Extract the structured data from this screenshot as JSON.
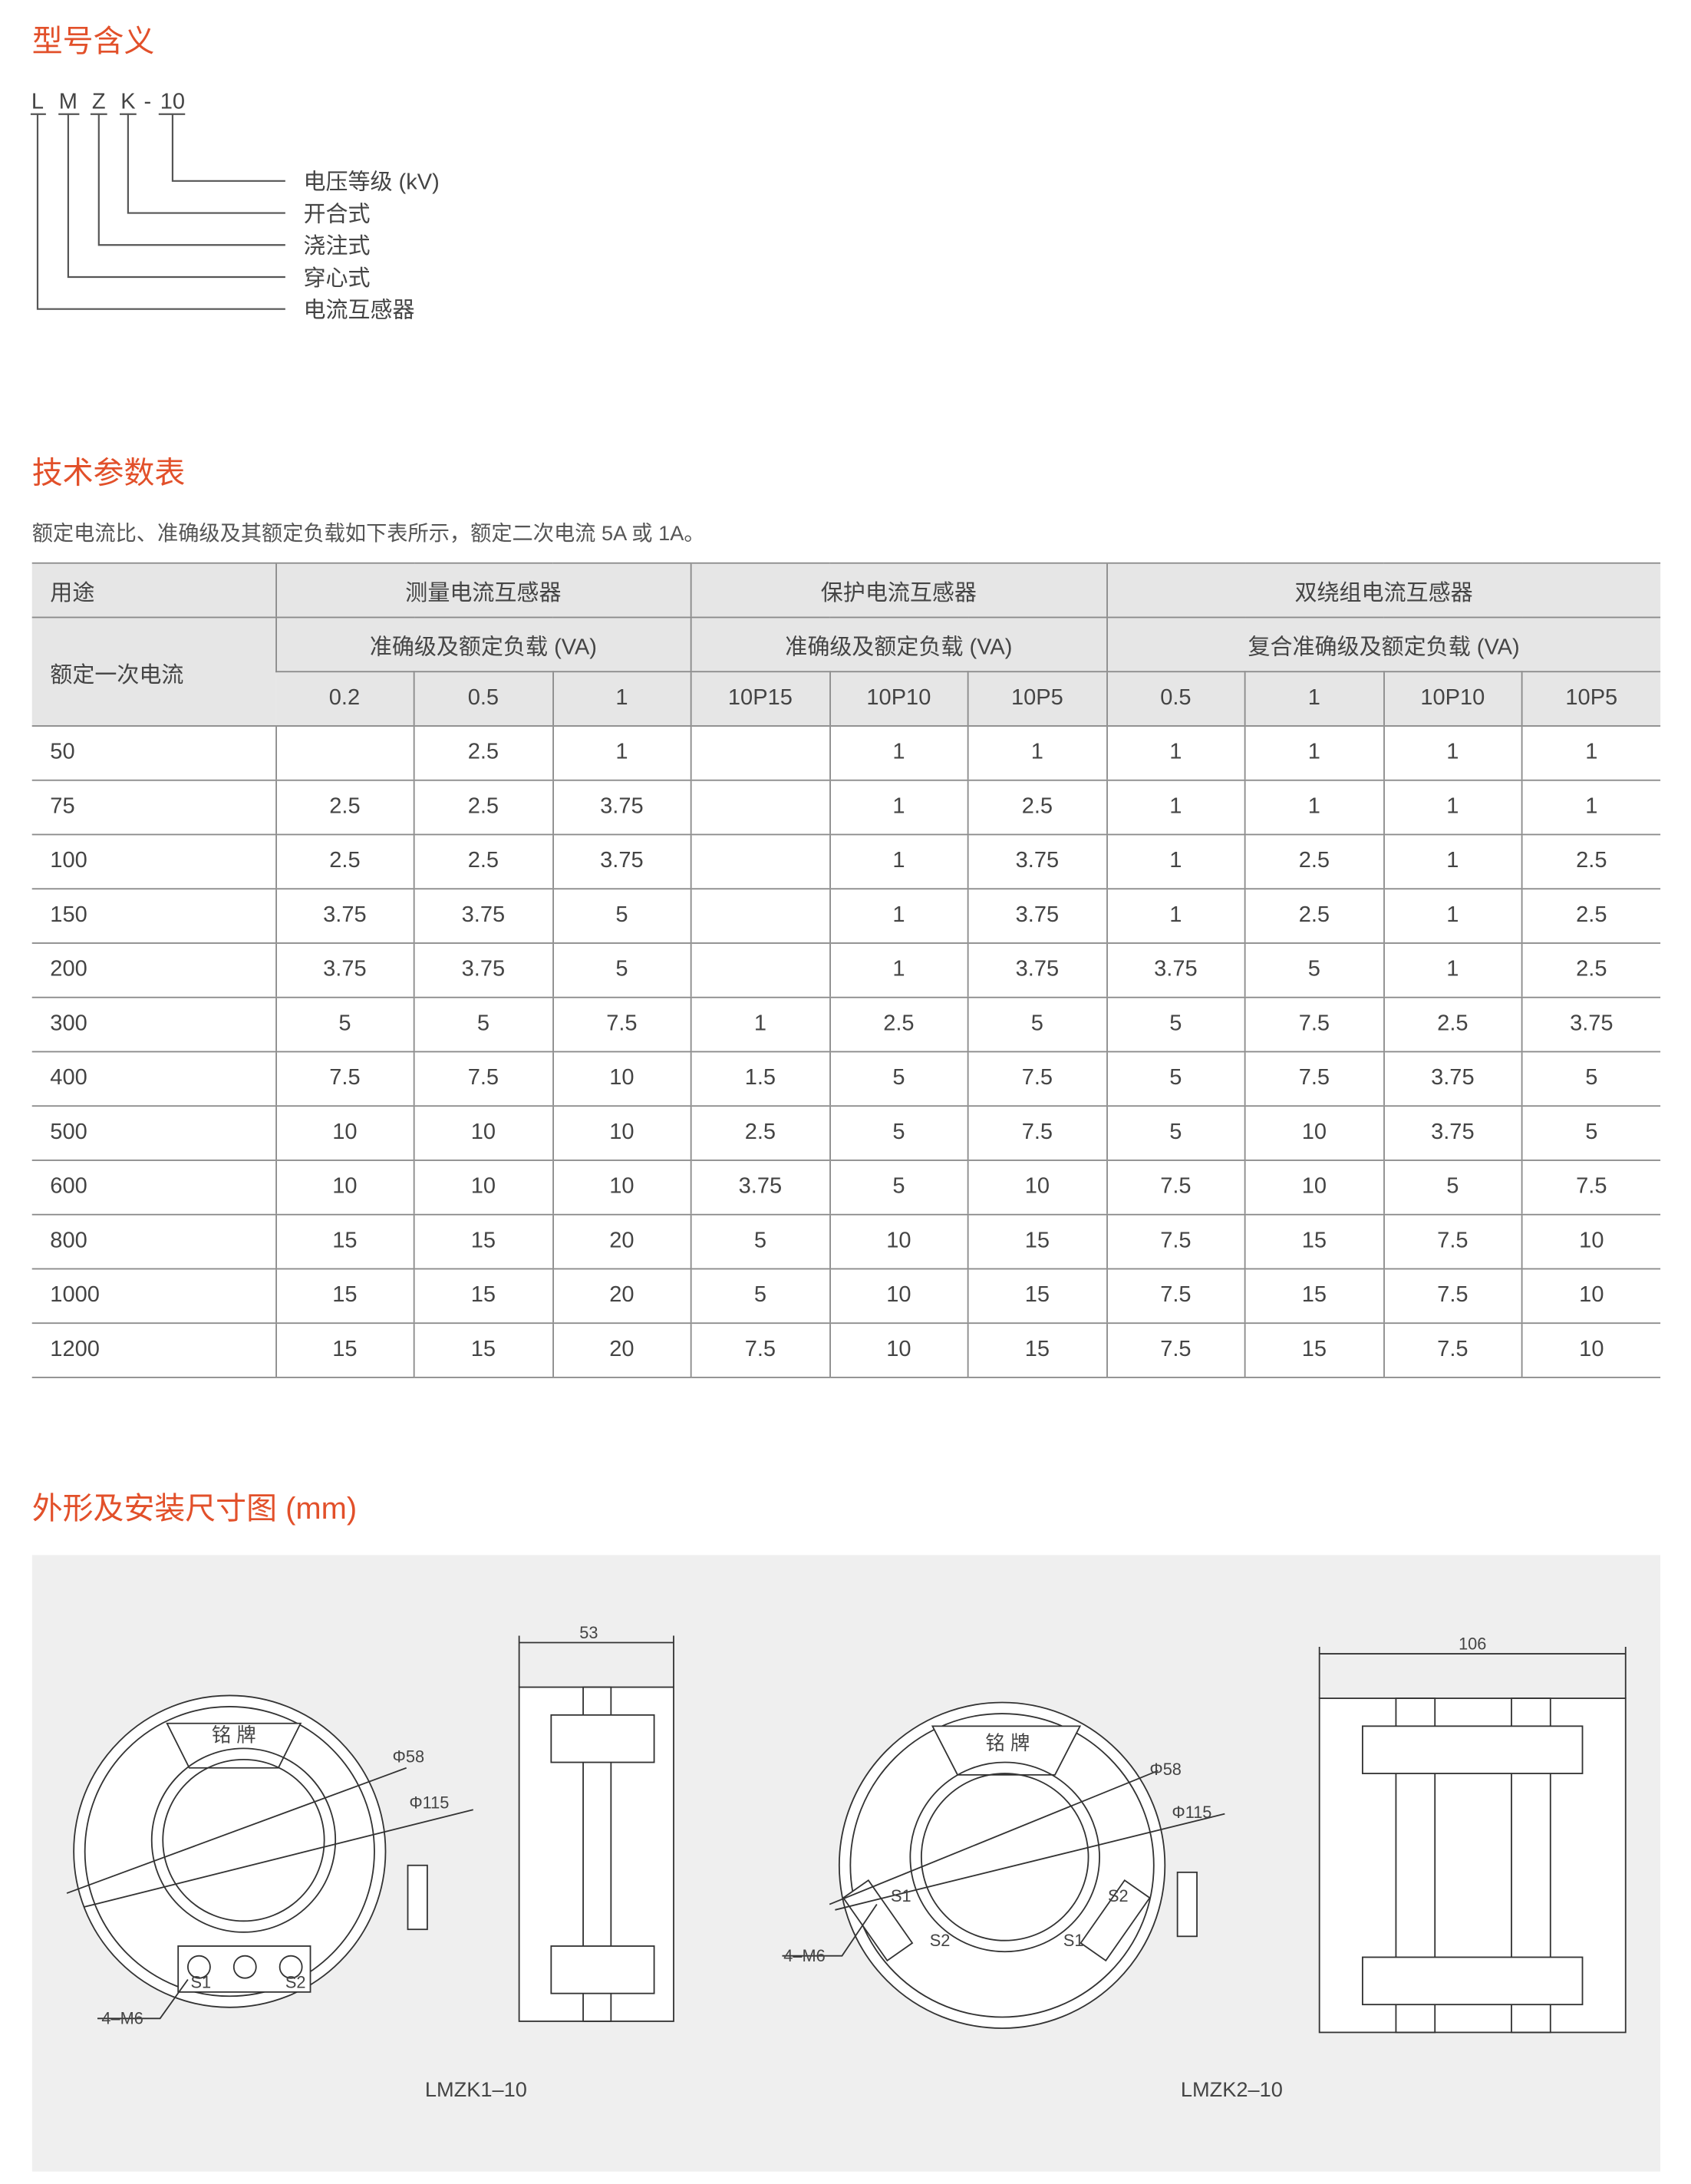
{
  "model": {
    "title": "型号含义",
    "code": [
      "L",
      "M",
      "Z",
      "K",
      "-",
      "10"
    ],
    "meanings": [
      "电压等级 (kV)",
      "开合式",
      "浇注式",
      "穿心式",
      "电流互感器"
    ]
  },
  "params": {
    "title": "技术参数表",
    "note": "额定电流比、准确级及其额定负载如下表所示，额定二次电流 5A 或 1A。",
    "table": {
      "header": {
        "usage": "用途",
        "groups": [
          "测量电流互感器",
          "保护电流互感器",
          "双绕组电流互感器"
        ],
        "rated_current": "额定一次电流",
        "sub_groups": [
          "准确级及额定负载 (VA)",
          "准确级及额定负载 (VA)",
          "复合准确级及额定负载 (VA)"
        ],
        "columns": [
          "0.2",
          "0.5",
          "1",
          "10P15",
          "10P10",
          "10P5",
          "0.5",
          "1",
          "10P10",
          "10P5"
        ]
      },
      "rows": [
        [
          50,
          null,
          2.5,
          1,
          null,
          1,
          1,
          1,
          1,
          1,
          1
        ],
        [
          75,
          2.5,
          2.5,
          3.75,
          null,
          1,
          2.5,
          1,
          1,
          1,
          1
        ],
        [
          100,
          2.5,
          2.5,
          3.75,
          null,
          1,
          3.75,
          1,
          2.5,
          1,
          2.5
        ],
        [
          150,
          3.75,
          3.75,
          5,
          null,
          1,
          3.75,
          1,
          2.5,
          1,
          2.5
        ],
        [
          200,
          3.75,
          3.75,
          5,
          null,
          1,
          3.75,
          3.75,
          5,
          1,
          2.5
        ],
        [
          300,
          5,
          5,
          7.5,
          1,
          2.5,
          5,
          5,
          7.5,
          2.5,
          3.75
        ],
        [
          400,
          7.5,
          7.5,
          10,
          1.5,
          5,
          7.5,
          5,
          7.5,
          3.75,
          5
        ],
        [
          500,
          10,
          10,
          10,
          2.5,
          5,
          7.5,
          5,
          10,
          3.75,
          5
        ],
        [
          600,
          10,
          10,
          10,
          3.75,
          5,
          10,
          7.5,
          10,
          5,
          7.5
        ],
        [
          800,
          15,
          15,
          20,
          5,
          10,
          15,
          7.5,
          15,
          7.5,
          10
        ],
        [
          1000,
          15,
          15,
          20,
          5,
          10,
          15,
          7.5,
          15,
          7.5,
          10
        ],
        [
          1200,
          15,
          15,
          20,
          7.5,
          10,
          15,
          7.5,
          15,
          7.5,
          10
        ]
      ]
    }
  },
  "dimensions": {
    "title": "外形及安装尺寸图 (mm)",
    "drawings": [
      {
        "nameplate": "铭 牌",
        "dia_inner": "Φ58",
        "dia_outer": "Φ115",
        "terminals": [
          "S1",
          "S2"
        ],
        "mount": "4–M6",
        "width": "53",
        "caption": "LMZK1–10"
      },
      {
        "nameplate": "铭 牌",
        "dia_inner": "Φ58",
        "dia_outer": "Φ115",
        "terminals": [
          "S1",
          "S2",
          "S2",
          "S1"
        ],
        "mount": "4–M6",
        "width": "106",
        "caption": "LMZK2–10"
      }
    ]
  }
}
